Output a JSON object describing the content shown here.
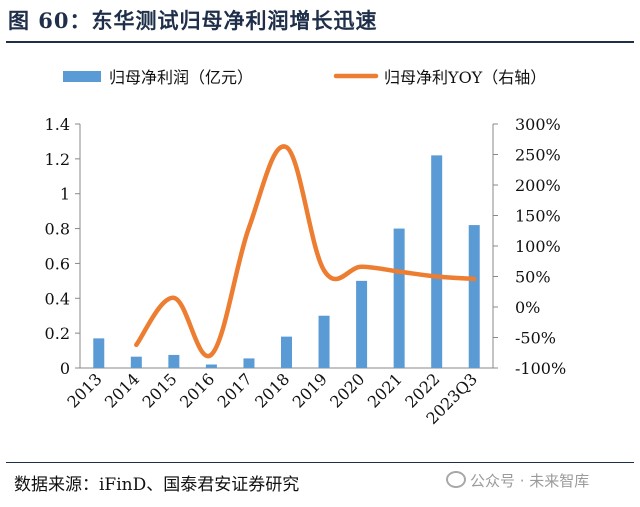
{
  "figure": {
    "title": "图 60：东华测试归母净利润增长迅速",
    "source": "数据来源：iFinD、国泰君安证券研究",
    "watermark": "公众号 · 未来智库"
  },
  "chart_data": {
    "type": "bar+line",
    "categories": [
      "2013",
      "2014",
      "2015",
      "2016",
      "2017",
      "2018",
      "2019",
      "2020",
      "2021",
      "2022",
      "2023Q3"
    ],
    "series": [
      {
        "name": "归母净利润（亿元）",
        "type": "bar",
        "axis": "left",
        "color": "#5b9bd5",
        "values": [
          0.17,
          0.065,
          0.075,
          0.02,
          0.055,
          0.18,
          0.3,
          0.5,
          0.8,
          1.22,
          0.82
        ]
      },
      {
        "name": "归母净利YOY（右轴）",
        "type": "line",
        "axis": "right",
        "color": "#ed7d31",
        "values": [
          null,
          -62,
          15,
          -78,
          130,
          262,
          60,
          66,
          58,
          50,
          46
        ]
      }
    ],
    "y_left": {
      "min": 0,
      "max": 1.4,
      "ticks": [
        0,
        0.2,
        0.4,
        0.6,
        0.8,
        1,
        1.2,
        1.4
      ],
      "tick_labels": [
        "0",
        "0.2",
        "0.4",
        "0.6",
        "0.8",
        "1",
        "1.2",
        "1.4"
      ]
    },
    "y_right": {
      "min": -100,
      "max": 300,
      "ticks": [
        -100,
        -50,
        0,
        50,
        100,
        150,
        200,
        250,
        300
      ],
      "tick_labels": [
        "-100%",
        "-50%",
        "0%",
        "50%",
        "100%",
        "150%",
        "200%",
        "250%",
        "300%"
      ]
    },
    "legend_position": "top",
    "grid": false
  }
}
